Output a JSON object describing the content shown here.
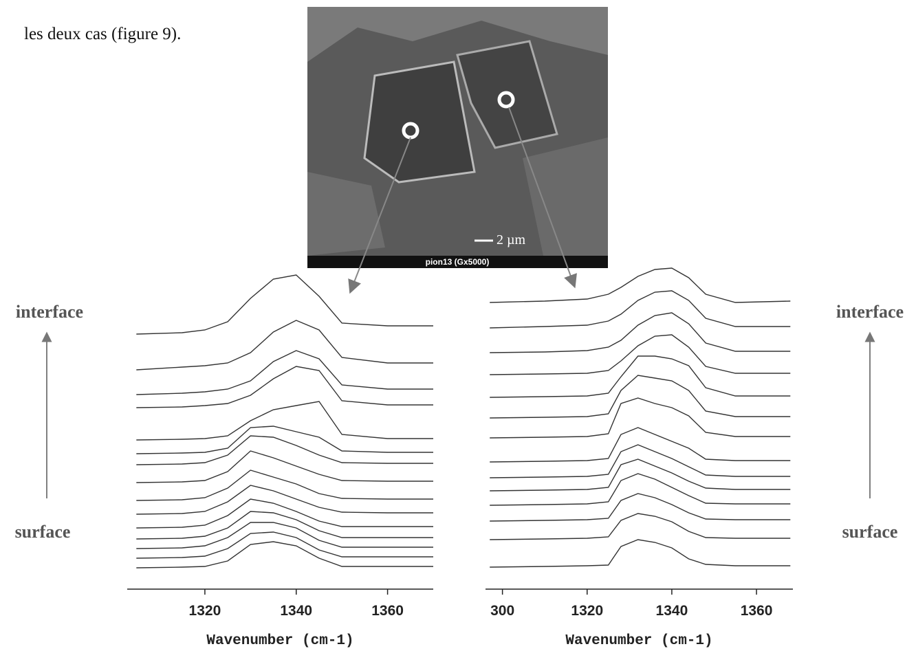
{
  "text": {
    "intro": "les deux cas (figure 9)."
  },
  "image": {
    "caption": "pion13 (Gx5000)",
    "scale": "2 µm"
  },
  "labels": {
    "left_top": "interface",
    "left_bottom": "surface",
    "right_top": "interface",
    "right_bottom": "surface"
  },
  "chart_data": [
    {
      "type": "line",
      "x_label": "Wavenumber (cm-1)",
      "color": "#333333",
      "x": [
        1305,
        1315,
        1320,
        1325,
        1330,
        1335,
        1340,
        1345,
        1350,
        1360,
        1370
      ],
      "xlim": [
        1303,
        1370
      ],
      "xticks": [
        1320,
        1340,
        1360
      ],
      "ylim": [
        0,
        480
      ],
      "series": [
        {
          "values": [
            371,
            373,
            377,
            389,
            423,
            451,
            457,
            426,
            387,
            383,
            383
          ]
        },
        {
          "values": [
            319,
            323,
            325,
            329,
            344,
            374,
            391,
            377,
            337,
            329,
            329
          ]
        },
        {
          "values": [
            283,
            285,
            287,
            291,
            303,
            331,
            347,
            335,
            297,
            291,
            291
          ]
        },
        {
          "values": [
            264,
            265,
            267,
            270,
            282,
            306,
            324,
            318,
            274,
            268,
            268
          ]
        },
        {
          "values": [
            217,
            218,
            219,
            223,
            245,
            261,
            267,
            273,
            225,
            219,
            219
          ]
        },
        {
          "values": [
            197,
            198,
            199,
            205,
            235,
            237,
            229,
            221,
            201,
            199,
            199
          ]
        },
        {
          "values": [
            181,
            182,
            184,
            195,
            223,
            221,
            209,
            195,
            184,
            183,
            183
          ]
        },
        {
          "values": [
            155,
            156,
            158,
            171,
            201,
            191,
            179,
            167,
            158,
            157,
            157
          ]
        },
        {
          "values": [
            129,
            130,
            133,
            147,
            173,
            163,
            153,
            139,
            132,
            131,
            131
          ]
        },
        {
          "values": [
            109,
            110,
            113,
            127,
            151,
            143,
            131,
            119,
            112,
            111,
            111
          ]
        },
        {
          "values": [
            89,
            90,
            93,
            107,
            131,
            125,
            113,
            99,
            91,
            91,
            91
          ]
        },
        {
          "values": [
            73,
            74,
            77,
            89,
            113,
            111,
            101,
            85,
            75,
            75,
            75
          ]
        },
        {
          "values": [
            59,
            60,
            63,
            75,
            97,
            97,
            89,
            71,
            61,
            61,
            61
          ]
        },
        {
          "values": [
            45,
            46,
            48,
            59,
            81,
            83,
            75,
            57,
            47,
            47,
            47
          ]
        },
        {
          "values": [
            31,
            32,
            33,
            41,
            65,
            69,
            63,
            45,
            33,
            33,
            33
          ]
        }
      ]
    },
    {
      "type": "line",
      "x_label": "Wavenumber (cm-1)",
      "color": "#333333",
      "x": [
        1297,
        1310,
        1320,
        1325,
        1328,
        1332,
        1336,
        1340,
        1344,
        1348,
        1355,
        1368
      ],
      "xlim": [
        1296,
        1368.6
      ],
      "xticks": [
        {
          "value": 1300,
          "label": "300"
        },
        1320,
        1340,
        1360
      ],
      "ylim": [
        0,
        480
      ],
      "series": [
        {
          "values": [
            417,
            419,
            422,
            429,
            439,
            455,
            465,
            467,
            453,
            429,
            417,
            419
          ]
        },
        {
          "values": [
            380,
            382,
            384,
            390,
            400,
            420,
            432,
            434,
            420,
            394,
            382,
            382
          ]
        },
        {
          "values": [
            344,
            345,
            347,
            352,
            362,
            384,
            398,
            402,
            386,
            358,
            346,
            346
          ]
        },
        {
          "values": [
            312,
            313,
            314,
            318,
            332,
            354,
            368,
            370,
            352,
            324,
            314,
            314
          ]
        },
        {
          "values": [
            279,
            280,
            281,
            285,
            309,
            339,
            339,
            335,
            325,
            293,
            281,
            281
          ]
        },
        {
          "values": [
            249,
            250,
            251,
            255,
            289,
            311,
            307,
            303,
            289,
            259,
            251,
            251
          ]
        },
        {
          "values": [
            220,
            221,
            222,
            226,
            270,
            278,
            270,
            264,
            252,
            228,
            222,
            222
          ]
        },
        {
          "values": [
            185,
            186,
            187,
            190,
            225,
            235,
            225,
            215,
            205,
            189,
            187,
            187
          ]
        },
        {
          "values": [
            162,
            163,
            164,
            167,
            200,
            210,
            200,
            190,
            178,
            166,
            164,
            164
          ]
        },
        {
          "values": [
            143,
            144,
            145,
            148,
            181,
            189,
            179,
            169,
            157,
            147,
            145,
            145
          ]
        },
        {
          "values": [
            122,
            123,
            124,
            127,
            158,
            168,
            160,
            148,
            136,
            125,
            124,
            124
          ]
        },
        {
          "values": [
            99,
            100,
            101,
            103,
            129,
            139,
            133,
            123,
            111,
            102,
            101,
            101
          ]
        },
        {
          "values": [
            72,
            73,
            74,
            76,
            100,
            110,
            106,
            98,
            84,
            75,
            74,
            74
          ]
        },
        {
          "values": [
            32,
            33,
            34,
            35,
            62,
            72,
            68,
            60,
            44,
            36,
            34,
            34
          ]
        }
      ]
    }
  ]
}
